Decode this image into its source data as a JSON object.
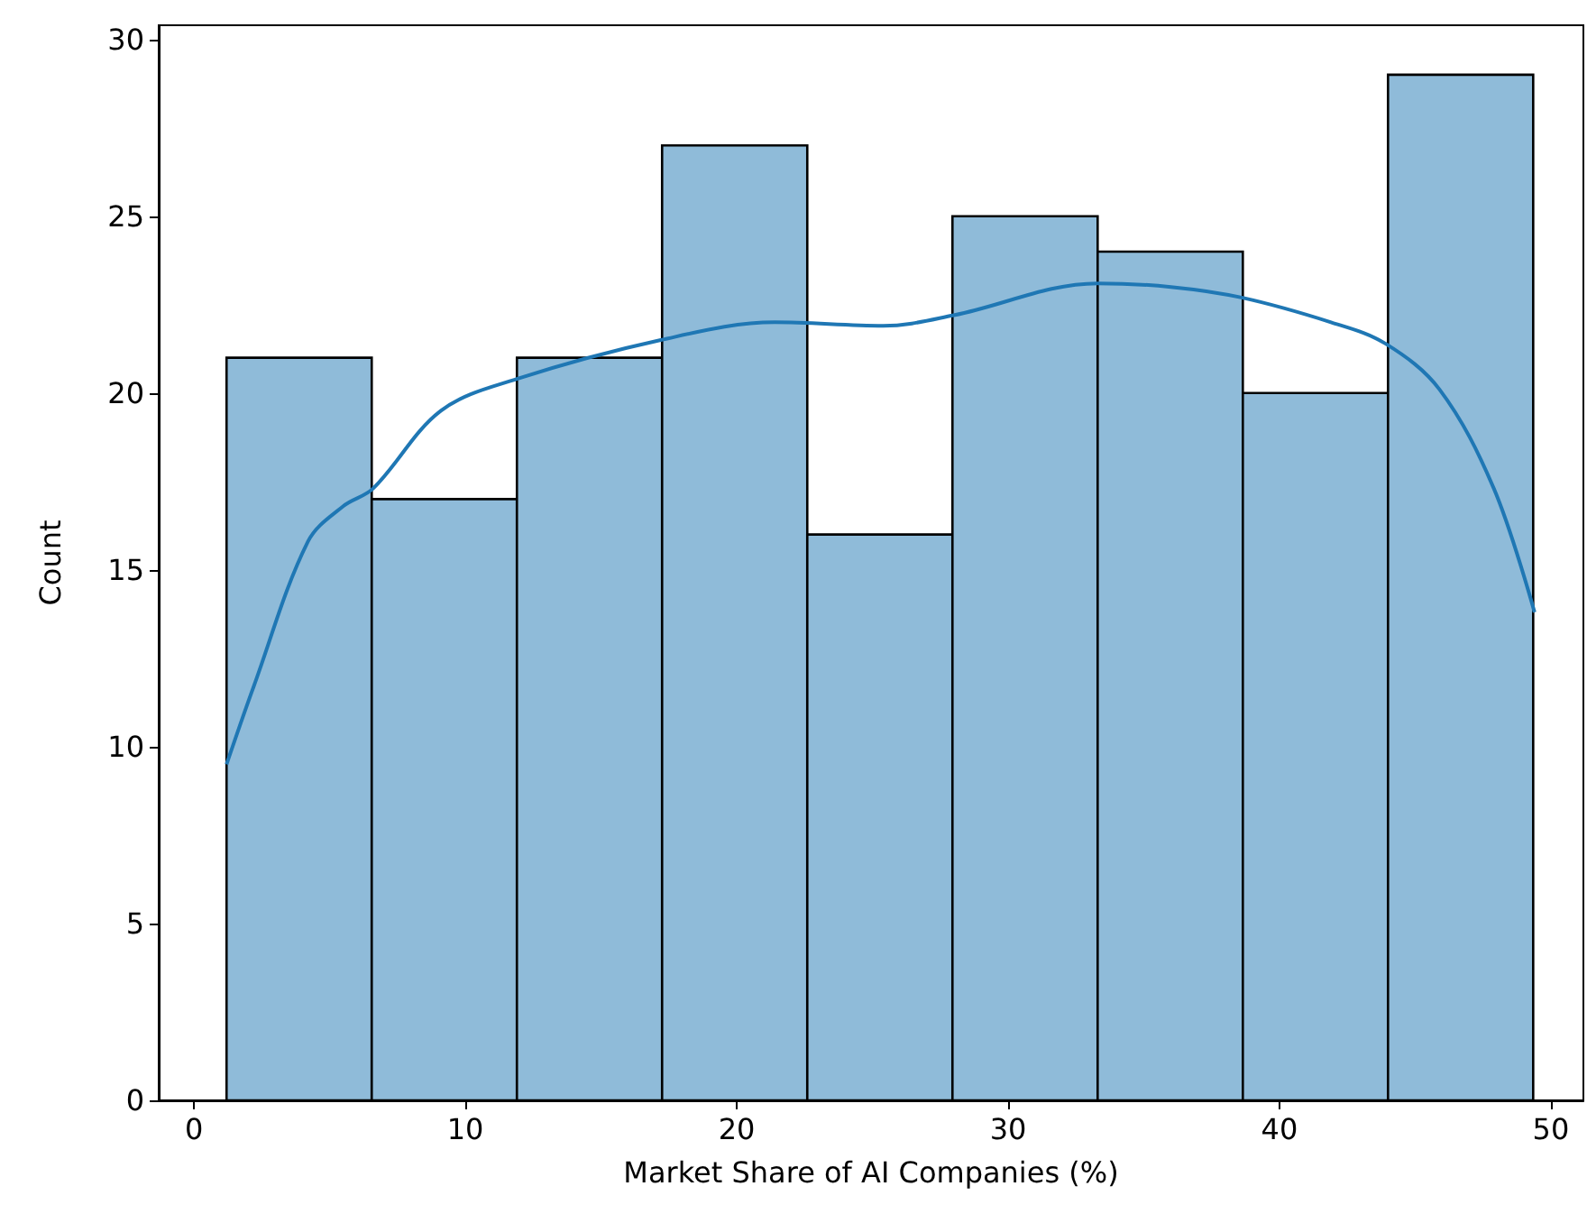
{
  "chart_data": {
    "type": "histogram",
    "xlabel": "Market Share of AI Companies (%)",
    "ylabel": "Count",
    "bins": [
      1.2,
      6.55,
      11.9,
      17.25,
      22.6,
      27.95,
      33.3,
      38.65,
      44.0,
      49.35
    ],
    "values": [
      21,
      17,
      21,
      27,
      16,
      25,
      24,
      20,
      29
    ],
    "color": "#8fbbd9",
    "series": [
      {
        "type": "line",
        "color": "#1f77b4",
        "x": [
          1.2,
          2.2,
          4.2,
          5.5,
          6.6,
          9.1,
          11.9,
          17.2,
          21.4,
          25.4,
          28,
          33.3,
          36,
          38.6,
          41.9,
          43.9,
          45.9,
          47.9,
          49.4
        ],
        "values": [
          9.5,
          11.7,
          15.8,
          16.8,
          17.3,
          19.5,
          20.4,
          21.5,
          22.0,
          21.9,
          22.2,
          23.1,
          23.0,
          22.7,
          22.0,
          21.4,
          20.1,
          17.3,
          13.8
        ]
      }
    ],
    "xlim": [
      -1.3,
      51.2
    ],
    "ylim": [
      0,
      30.4
    ],
    "xticks": [
      0,
      10,
      20,
      30,
      40,
      50
    ],
    "yticks": [
      0,
      5,
      10,
      15,
      20,
      25,
      30
    ],
    "grid": false
  }
}
